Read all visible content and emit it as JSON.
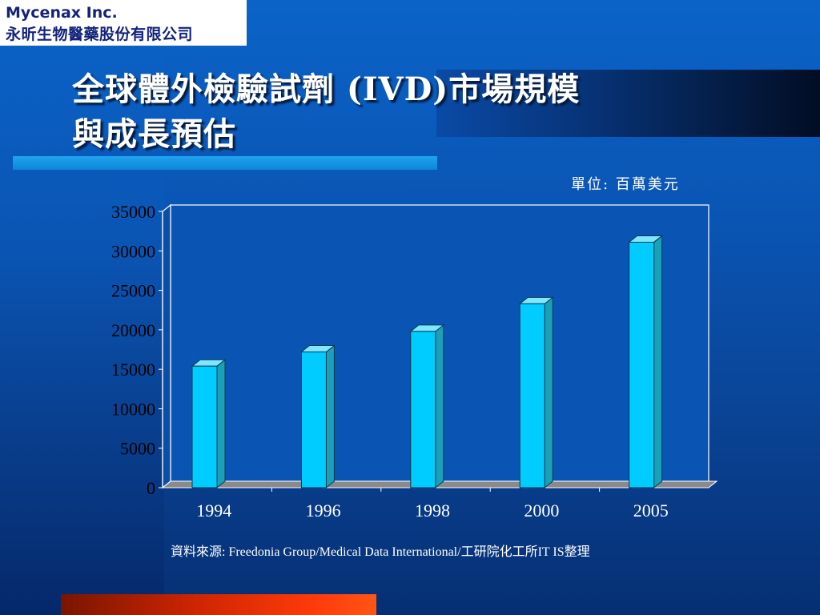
{
  "logo": {
    "company_en": "Mycenax Inc.",
    "company_zh": "永昕生物醫藥股份有限公司"
  },
  "slide": {
    "title_line1": "全球體外檢驗試劑 (IVD)市場規模",
    "title_line2": "與成長預估",
    "unit": "單位: 百萬美元",
    "source": "資料來源: Freedonia Group/Medical Data International/工研院化工所IT  IS整理"
  },
  "colors": {
    "bar_face": "#00ccff",
    "bar_top": "#7fe6ff",
    "bar_side": "#1aa0b8",
    "plot_bg": "#0a55b4",
    "accent_bottom": "#ff3a0a"
  },
  "chart_data": {
    "type": "bar",
    "style": "3d",
    "categories": [
      "1994",
      "1996",
      "1998",
      "2000",
      "2005"
    ],
    "values": [
      15400,
      17200,
      19800,
      23300,
      31100
    ],
    "ylim": [
      0,
      35000
    ],
    "yticks": [
      "0",
      "5000",
      "10000",
      "15000",
      "20000",
      "25000",
      "30000",
      "35000"
    ],
    "title": "",
    "xlabel": "",
    "ylabel": "",
    "grid": false,
    "legend": "none"
  }
}
